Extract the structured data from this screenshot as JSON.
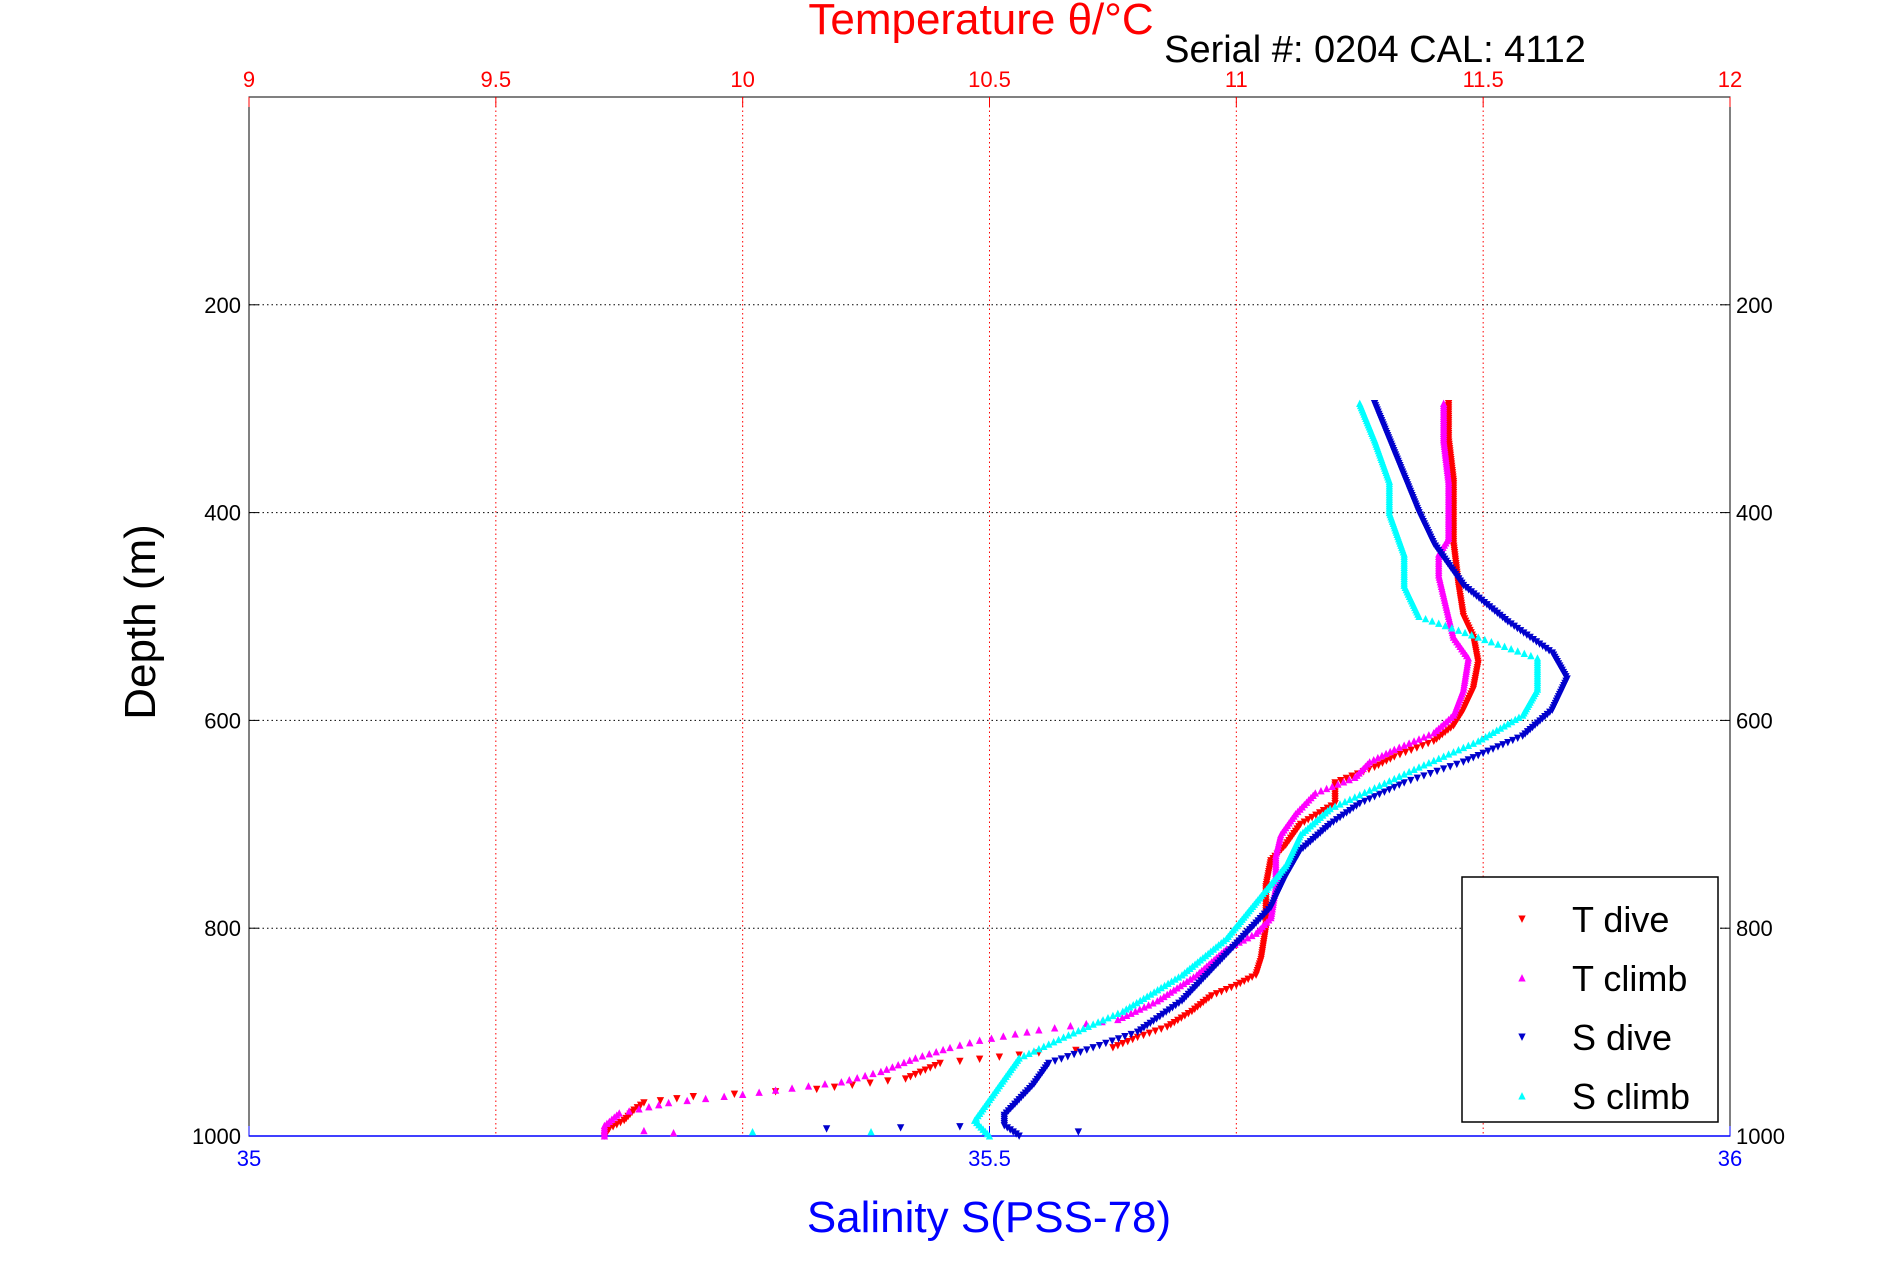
{
  "chart_data": {
    "type": "scatter",
    "title": "Temperature θ/°C",
    "subtitle": "Serial #: 0204  CAL: 4112",
    "xlabel": "Salinity S(PSS-78)",
    "ylabel": "Depth (m)",
    "grid": true,
    "legend_position": "bottom-right",
    "temperature_axis": {
      "position": "top",
      "range": [
        9,
        12
      ],
      "ticks": [
        9,
        9.5,
        10,
        10.5,
        11,
        11.5,
        12
      ],
      "tick_labels": [
        "9",
        "9.5",
        "10",
        "10.5",
        "11",
        "11.5",
        "12"
      ],
      "color": "#ff0000"
    },
    "salinity_axis": {
      "position": "bottom",
      "range": [
        35,
        36
      ],
      "ticks": [
        35,
        35.5,
        36
      ],
      "tick_labels": [
        "35",
        "35.5",
        "36"
      ],
      "color": "#0000ff"
    },
    "depth_axis": {
      "range": [
        0,
        1000
      ],
      "reversed": true,
      "ticks": [
        200,
        400,
        600,
        800,
        1000
      ],
      "tick_labels": [
        "200",
        "400",
        "600",
        "800",
        "1000"
      ]
    },
    "series": [
      {
        "name": "T dive",
        "color": "#ff0000",
        "marker": "triangle-down",
        "axis": "temperature",
        "points": [
          [
            11.43,
            295
          ],
          [
            11.43,
            330
          ],
          [
            11.44,
            370
          ],
          [
            11.44,
            400
          ],
          [
            11.44,
            430
          ],
          [
            11.45,
            470
          ],
          [
            11.46,
            500
          ],
          [
            11.48,
            520
          ],
          [
            11.49,
            545
          ],
          [
            11.48,
            570
          ],
          [
            11.46,
            590
          ],
          [
            11.44,
            605
          ],
          [
            11.4,
            620
          ],
          [
            11.32,
            635
          ],
          [
            11.28,
            645
          ],
          [
            11.2,
            660
          ],
          [
            11.2,
            680
          ],
          [
            11.13,
            700
          ],
          [
            11.1,
            720
          ],
          [
            11.07,
            735
          ],
          [
            11.06,
            760
          ],
          [
            11.06,
            800
          ],
          [
            11.05,
            830
          ],
          [
            11.04,
            845
          ],
          [
            11.0,
            855
          ],
          [
            10.95,
            865
          ],
          [
            10.91,
            880
          ],
          [
            10.86,
            895
          ],
          [
            10.8,
            905
          ],
          [
            10.75,
            915
          ],
          [
            10.6,
            920
          ],
          [
            10.4,
            930
          ],
          [
            10.33,
            945
          ],
          [
            10.15,
            955
          ],
          [
            9.9,
            962
          ],
          [
            9.8,
            968
          ],
          [
            9.78,
            975
          ],
          [
            9.76,
            985
          ],
          [
            9.73,
            993
          ],
          [
            9.72,
            1000
          ]
        ]
      },
      {
        "name": "T climb",
        "color": "#ff00ff",
        "marker": "triangle-up",
        "axis": "temperature",
        "points": [
          [
            11.42,
            295
          ],
          [
            11.42,
            330
          ],
          [
            11.43,
            370
          ],
          [
            11.43,
            400
          ],
          [
            11.43,
            425
          ],
          [
            11.41,
            440
          ],
          [
            11.41,
            460
          ],
          [
            11.42,
            480
          ],
          [
            11.43,
            500
          ],
          [
            11.44,
            520
          ],
          [
            11.47,
            540
          ],
          [
            11.46,
            570
          ],
          [
            11.44,
            595
          ],
          [
            11.4,
            612
          ],
          [
            11.32,
            628
          ],
          [
            11.27,
            640
          ],
          [
            11.24,
            655
          ],
          [
            11.16,
            670
          ],
          [
            11.12,
            690
          ],
          [
            11.09,
            710
          ],
          [
            11.08,
            730
          ],
          [
            11.08,
            760
          ],
          [
            11.07,
            790
          ],
          [
            11.04,
            805
          ],
          [
            10.98,
            820
          ],
          [
            10.92,
            845
          ],
          [
            10.84,
            870
          ],
          [
            10.76,
            888
          ],
          [
            10.6,
            898
          ],
          [
            10.48,
            908
          ],
          [
            10.42,
            915
          ],
          [
            10.35,
            925
          ],
          [
            10.28,
            938
          ],
          [
            10.2,
            948
          ],
          [
            10.0,
            960
          ],
          [
            9.85,
            968
          ],
          [
            9.75,
            978
          ],
          [
            9.72,
            990
          ],
          [
            9.72,
            1000
          ]
        ]
      },
      {
        "name": "S dive",
        "color": "#0000cc",
        "marker": "triangle-down",
        "axis": "salinity",
        "points": [
          [
            35.76,
            295
          ],
          [
            35.77,
            330
          ],
          [
            35.78,
            365
          ],
          [
            35.79,
            400
          ],
          [
            35.8,
            430
          ],
          [
            35.82,
            470
          ],
          [
            35.85,
            505
          ],
          [
            35.88,
            535
          ],
          [
            35.89,
            560
          ],
          [
            35.88,
            590
          ],
          [
            35.86,
            615
          ],
          [
            35.82,
            640
          ],
          [
            35.78,
            660
          ],
          [
            35.75,
            680
          ],
          [
            35.73,
            700
          ],
          [
            35.71,
            725
          ],
          [
            35.7,
            750
          ],
          [
            35.69,
            780
          ],
          [
            35.67,
            810
          ],
          [
            35.65,
            840
          ],
          [
            35.63,
            870
          ],
          [
            35.6,
            900
          ],
          [
            35.57,
            915
          ],
          [
            35.54,
            930
          ],
          [
            35.53,
            950
          ],
          [
            35.52,
            965
          ],
          [
            35.51,
            980
          ],
          [
            35.51,
            990
          ],
          [
            35.52,
            1000
          ]
        ]
      },
      {
        "name": "S climb",
        "color": "#00ffff",
        "marker": "triangle-up",
        "axis": "salinity",
        "points": [
          [
            35.75,
            295
          ],
          [
            35.76,
            330
          ],
          [
            35.77,
            370
          ],
          [
            35.77,
            400
          ],
          [
            35.78,
            440
          ],
          [
            35.78,
            470
          ],
          [
            35.79,
            500
          ],
          [
            35.83,
            520
          ],
          [
            35.87,
            540
          ],
          [
            35.87,
            570
          ],
          [
            35.86,
            595
          ],
          [
            35.83,
            620
          ],
          [
            35.79,
            645
          ],
          [
            35.76,
            665
          ],
          [
            35.73,
            685
          ],
          [
            35.71,
            710
          ],
          [
            35.7,
            740
          ],
          [
            35.68,
            775
          ],
          [
            35.66,
            810
          ],
          [
            35.63,
            845
          ],
          [
            35.59,
            880
          ],
          [
            35.55,
            905
          ],
          [
            35.52,
            925
          ],
          [
            35.51,
            945
          ],
          [
            35.5,
            965
          ],
          [
            35.49,
            985
          ],
          [
            35.5,
            1000
          ]
        ]
      }
    ],
    "scattered_points": [
      {
        "series": "S dive",
        "values": [
          [
            35.39,
            993
          ],
          [
            35.44,
            992
          ],
          [
            35.48,
            991
          ],
          [
            35.56,
            996
          ]
        ]
      },
      {
        "series": "S climb",
        "values": [
          [
            35.34,
            996
          ],
          [
            35.42,
            996
          ]
        ]
      },
      {
        "series": "T climb",
        "values": [
          [
            9.8,
            995
          ],
          [
            9.86,
            997
          ]
        ]
      }
    ]
  }
}
